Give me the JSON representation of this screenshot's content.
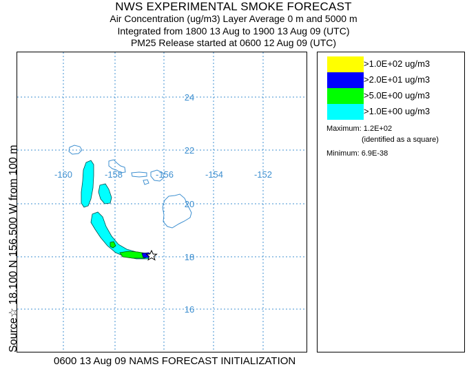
{
  "header": {
    "title": "NWS EXPERIMENTAL SMOKE FORECAST",
    "line2": "Air Concentration (ug/m3) Layer Average    0 m and  5000 m",
    "line3": "Integrated from 1800 13 Aug to 1900 13 Aug 09 (UTC)",
    "line4": "PM25 Release started at 0600 12 Aug 09 (UTC)"
  },
  "side_label": "Source☆ 18.100 N 156.500 W    from  100 m",
  "bottom_label": "0600 13 Aug 09 NAMS FORECAST INITIALIZATION",
  "map": {
    "lon_labels": [
      "-160",
      "-158",
      "-156",
      "-154",
      "-152"
    ],
    "lat_labels": [
      "24",
      "22",
      "20",
      "18",
      "16"
    ],
    "gridline_color": "#3d8fd0",
    "coast_color": "#3d8fd0"
  },
  "legend": {
    "items": [
      {
        "label": ">1.0E+02 ug/m3",
        "color": "#ffff00"
      },
      {
        "label": ">2.0E+01 ug/m3",
        "color": "#0000ff"
      },
      {
        "label": ">5.0E+00 ug/m3",
        "color": "#00ff00"
      },
      {
        "label": ">1.0E+00 ug/m3",
        "color": "#00ffff"
      }
    ],
    "maximum": "Maximum: 1.2E+02",
    "max_note": "(identified as a square)",
    "minimum": "Minimum: 6.9E-38"
  }
}
